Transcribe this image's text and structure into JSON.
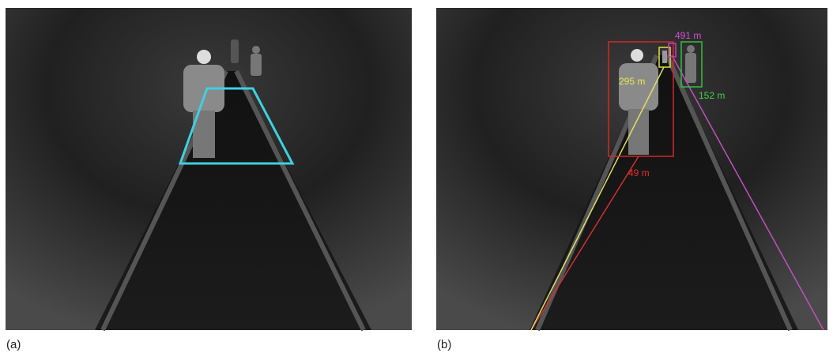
{
  "panels": [
    {
      "label": "(a)"
    },
    {
      "label": "(b)",
      "detections": [
        {
          "distance": "491 m"
        },
        {
          "distance": "295 m"
        },
        {
          "distance": "152 m"
        },
        {
          "distance": "49 m"
        }
      ]
    }
  ]
}
